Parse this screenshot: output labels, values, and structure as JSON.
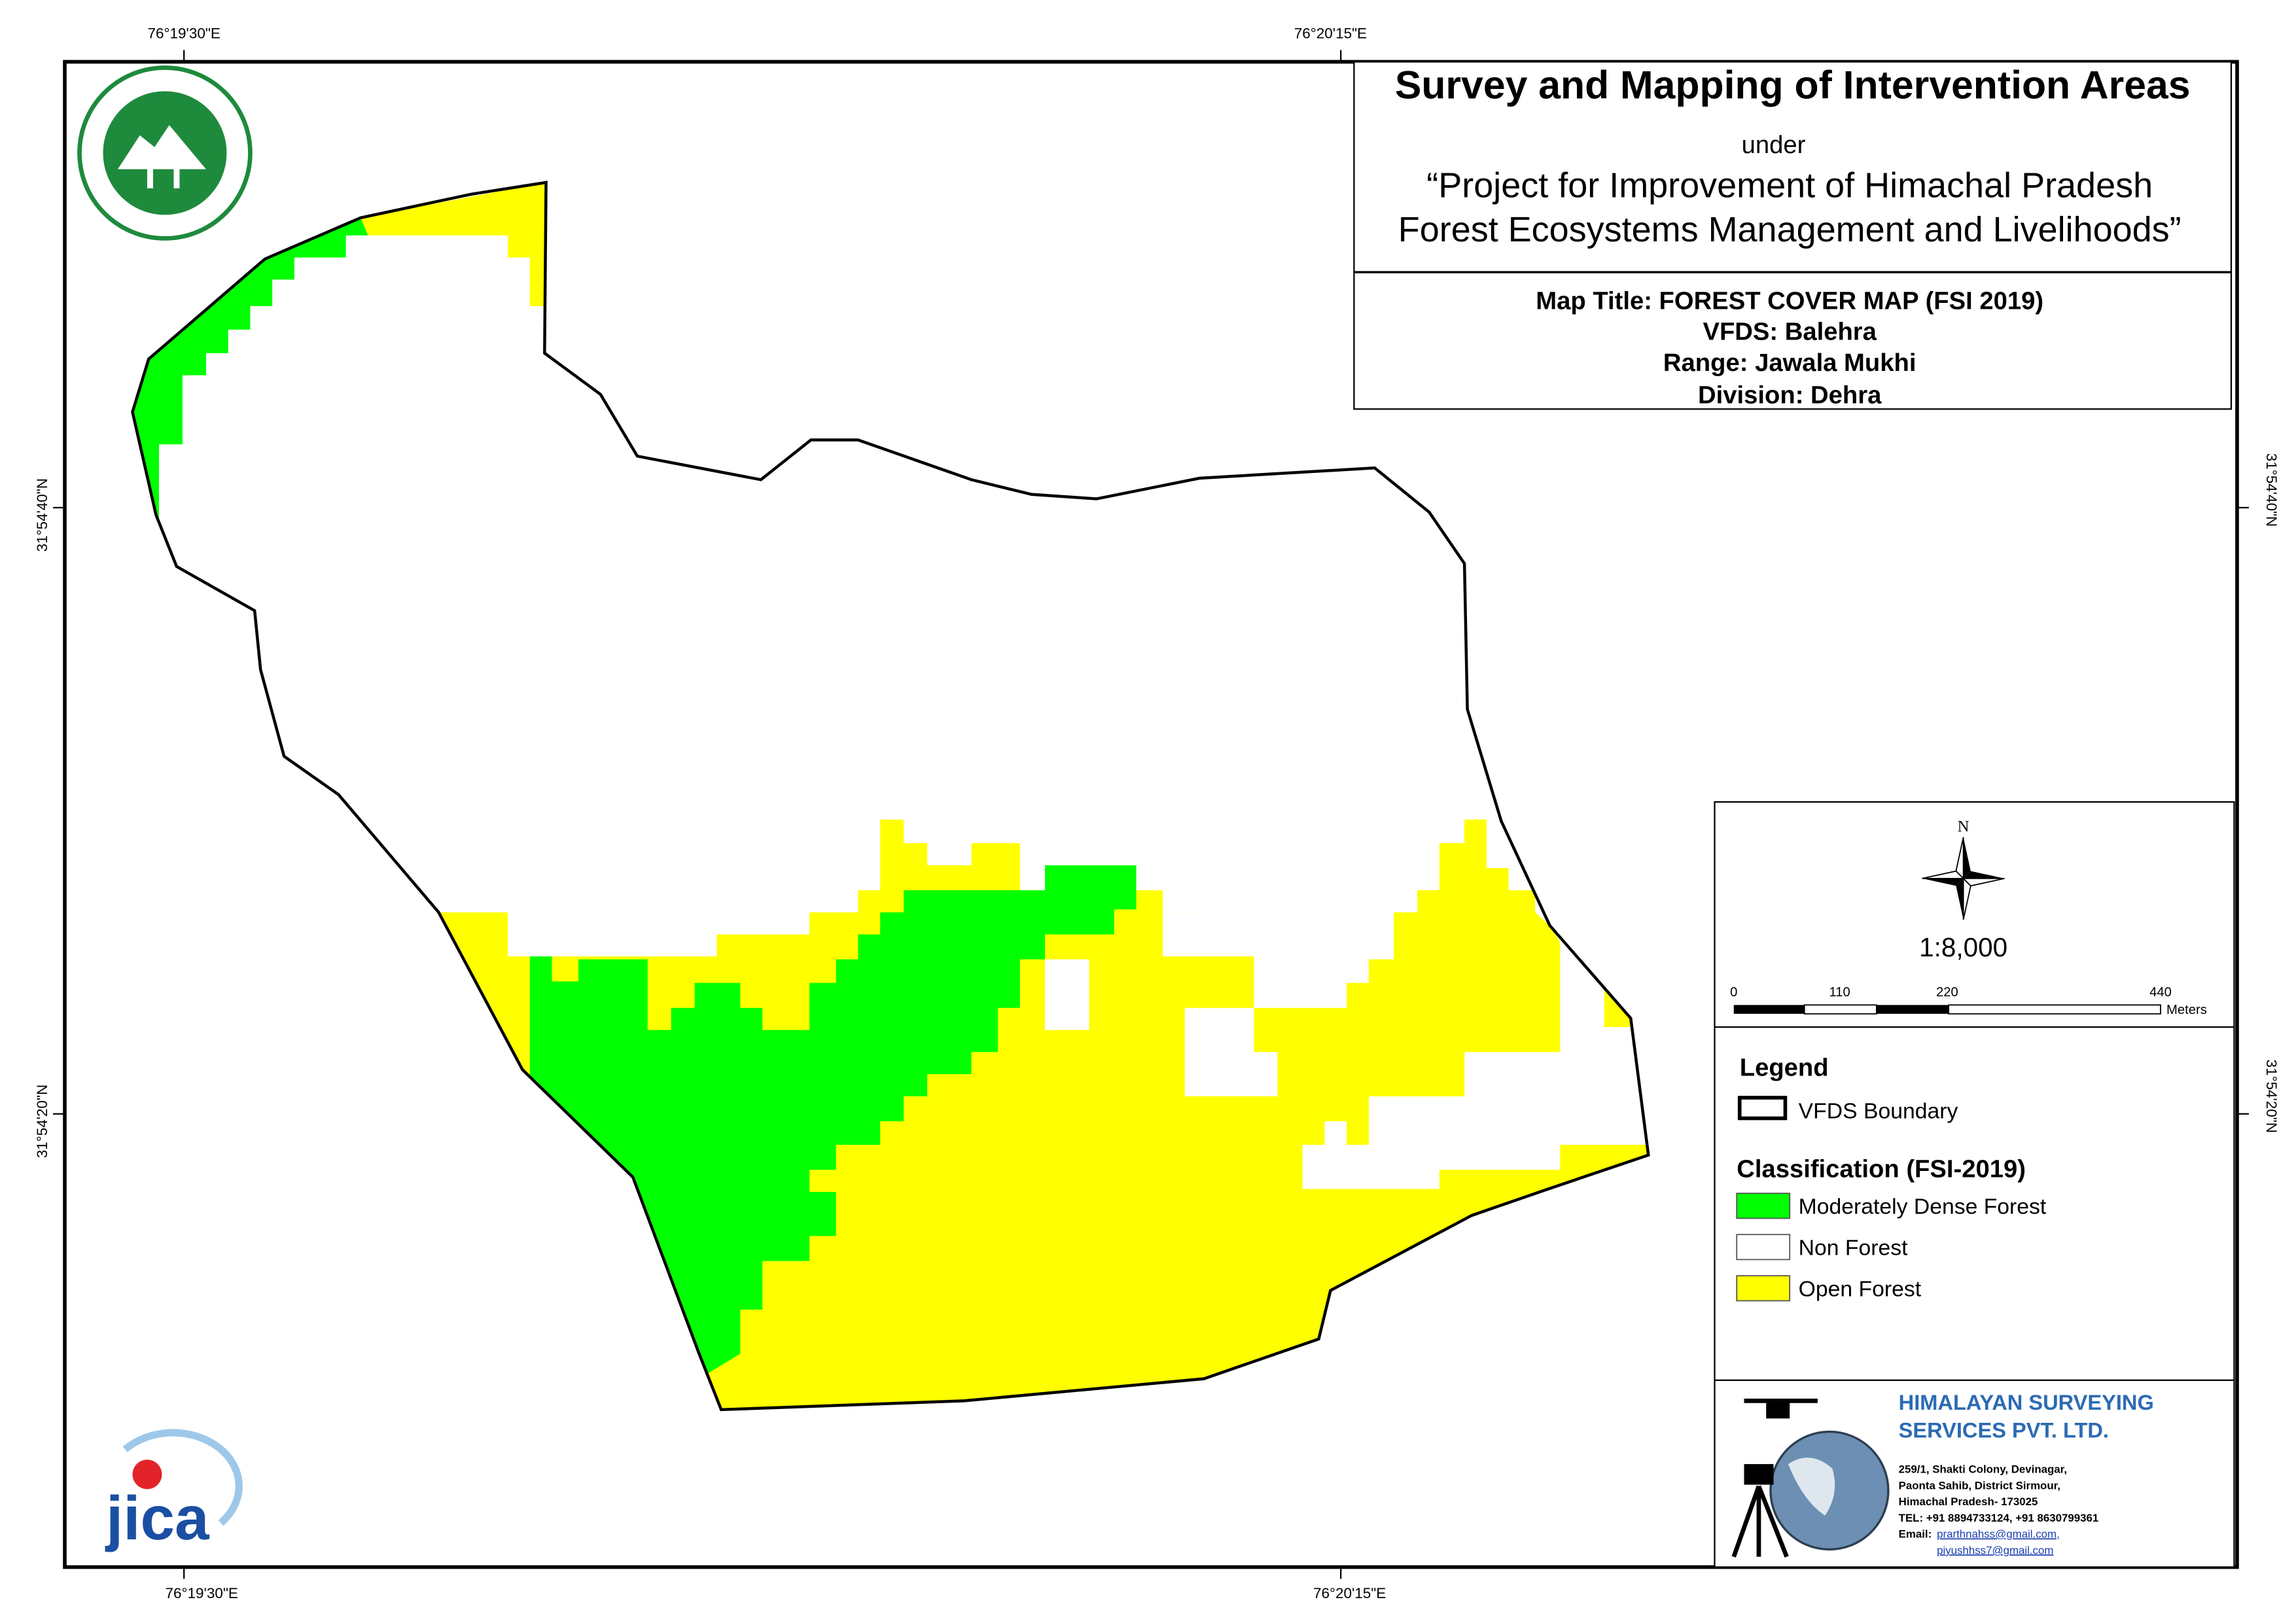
{
  "coordinates": {
    "top": [
      "76°19'30\"E",
      "76°20'15\"E"
    ],
    "bottom": [
      "76°19'30\"E",
      "76°20'15\"E"
    ],
    "left": [
      "31°54'40\"N",
      "31°54'20\"N"
    ],
    "right": [
      "31°54'40\"N",
      "31°54'20\"N"
    ]
  },
  "title_block": {
    "title": "Survey and Mapping of Intervention Areas",
    "under": "under",
    "project": [
      "“Project for Improvement of Himachal Pradesh",
      "Forest Ecosystems Management and Livelihoods”"
    ],
    "map_info": [
      "Map Title: FOREST COVER MAP (FSI 2019)",
      "VFDS: Balehra",
      "Range: Jawala Mukhi",
      "Division: Dehra"
    ]
  },
  "north": "N",
  "scale": "1:8,000",
  "scale_bar": {
    "ticks": [
      "0",
      "110",
      "220",
      "440"
    ],
    "unit": "Meters"
  },
  "legend": {
    "title": "Legend",
    "boundary": "VFDS Boundary",
    "classification_title": "Classification (FSI-2019)",
    "classes": [
      {
        "label": "Moderately Dense Forest",
        "color": "#00ff00"
      },
      {
        "label": "Non Forest",
        "color": "#ffffff"
      },
      {
        "label": "Open Forest",
        "color": "#ffff00"
      }
    ]
  },
  "logo_text": "jica",
  "company": {
    "name": [
      "HIMALAYAN SURVEYING",
      "SERVICES PVT. LTD."
    ],
    "address": [
      "259/1, Shakti Colony, Devinagar,",
      "Paonta Sahib, District Sirmour,",
      "Himachal Pradesh- 173025",
      "TEL: +91 8894733124, +91 8630799361"
    ],
    "email_label": "Email:",
    "emails": [
      "prarthnahss@gmail.com,",
      "piyushhss7@gmail.com"
    ]
  }
}
